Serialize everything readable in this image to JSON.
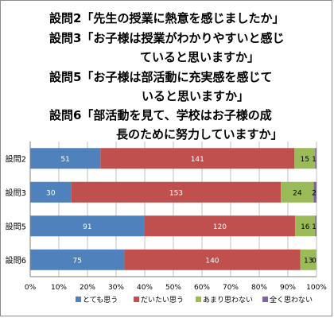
{
  "chart_data": {
    "type": "bar",
    "stacked": "percent",
    "orientation": "horizontal",
    "title_lines": [
      "設問2「先生の授業に熱意を感じましたか」",
      "設問3「お子様は授業がわかりやすいと感じ",
      "ていると思いますか」",
      "設問5「お子様は部活動に充実感を感じて",
      "いると思いますか」",
      "設問6「部活動を見て、学校はお子様の成",
      "長のために努力していますか」"
    ],
    "categories": [
      "設問2",
      "設問3",
      "設問5",
      "設問6"
    ],
    "series": [
      {
        "name": "とても思う",
        "color": "#4f81bd",
        "values": [
          51,
          30,
          91,
          75
        ]
      },
      {
        "name": "だいたい思う",
        "color": "#c0504d",
        "values": [
          141,
          153,
          120,
          140
        ]
      },
      {
        "name": "あまり思わない",
        "color": "#9bbb59",
        "values": [
          15,
          24,
          16,
          13
        ]
      },
      {
        "name": "全く思わない",
        "color": "#8064a2",
        "values": [
          1,
          2,
          1,
          0
        ]
      }
    ],
    "x_ticks": [
      "0%",
      "10%",
      "20%",
      "30%",
      "40%",
      "50%",
      "60%",
      "70%",
      "80%",
      "90%",
      "100%"
    ],
    "xlim": [
      0,
      100
    ],
    "grid": true,
    "legend_position": "bottom"
  }
}
